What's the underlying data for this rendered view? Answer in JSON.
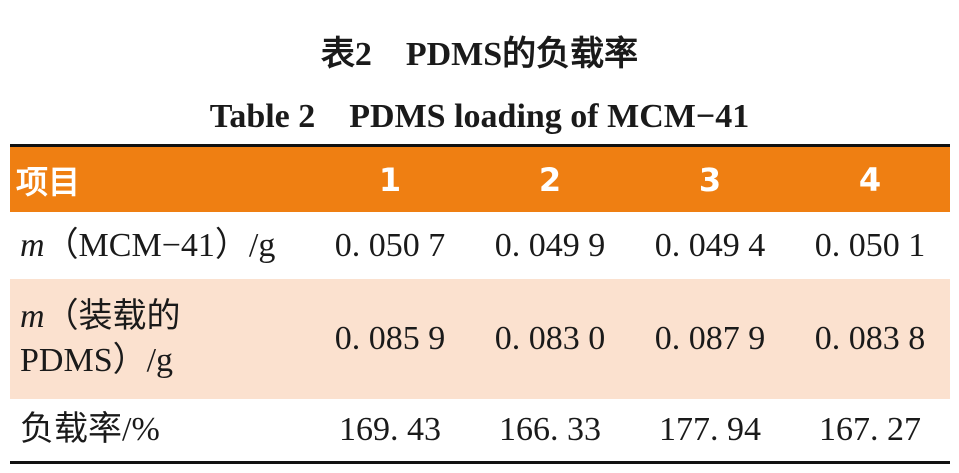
{
  "title_cn": "表2　PDMS的负载率",
  "title_en": "Table 2　PDMS loading of MCM−41",
  "table": {
    "header": [
      "项目",
      "1",
      "2",
      "3",
      "4"
    ],
    "rows": [
      {
        "symbol": "m",
        "label": "（MCM−41）/g",
        "values": [
          "0. 050 7",
          "0. 049 9",
          "0. 049 4",
          "0. 050 1"
        ]
      },
      {
        "symbol": "m",
        "label": "（装载的\nPDMS）/g",
        "values": [
          "0. 085 9",
          "0. 083 0",
          "0. 087 9",
          "0. 083 8"
        ]
      },
      {
        "label": "负载率/%",
        "values": [
          "169. 43",
          "166. 33",
          "177. 94",
          "167. 27"
        ]
      }
    ]
  }
}
